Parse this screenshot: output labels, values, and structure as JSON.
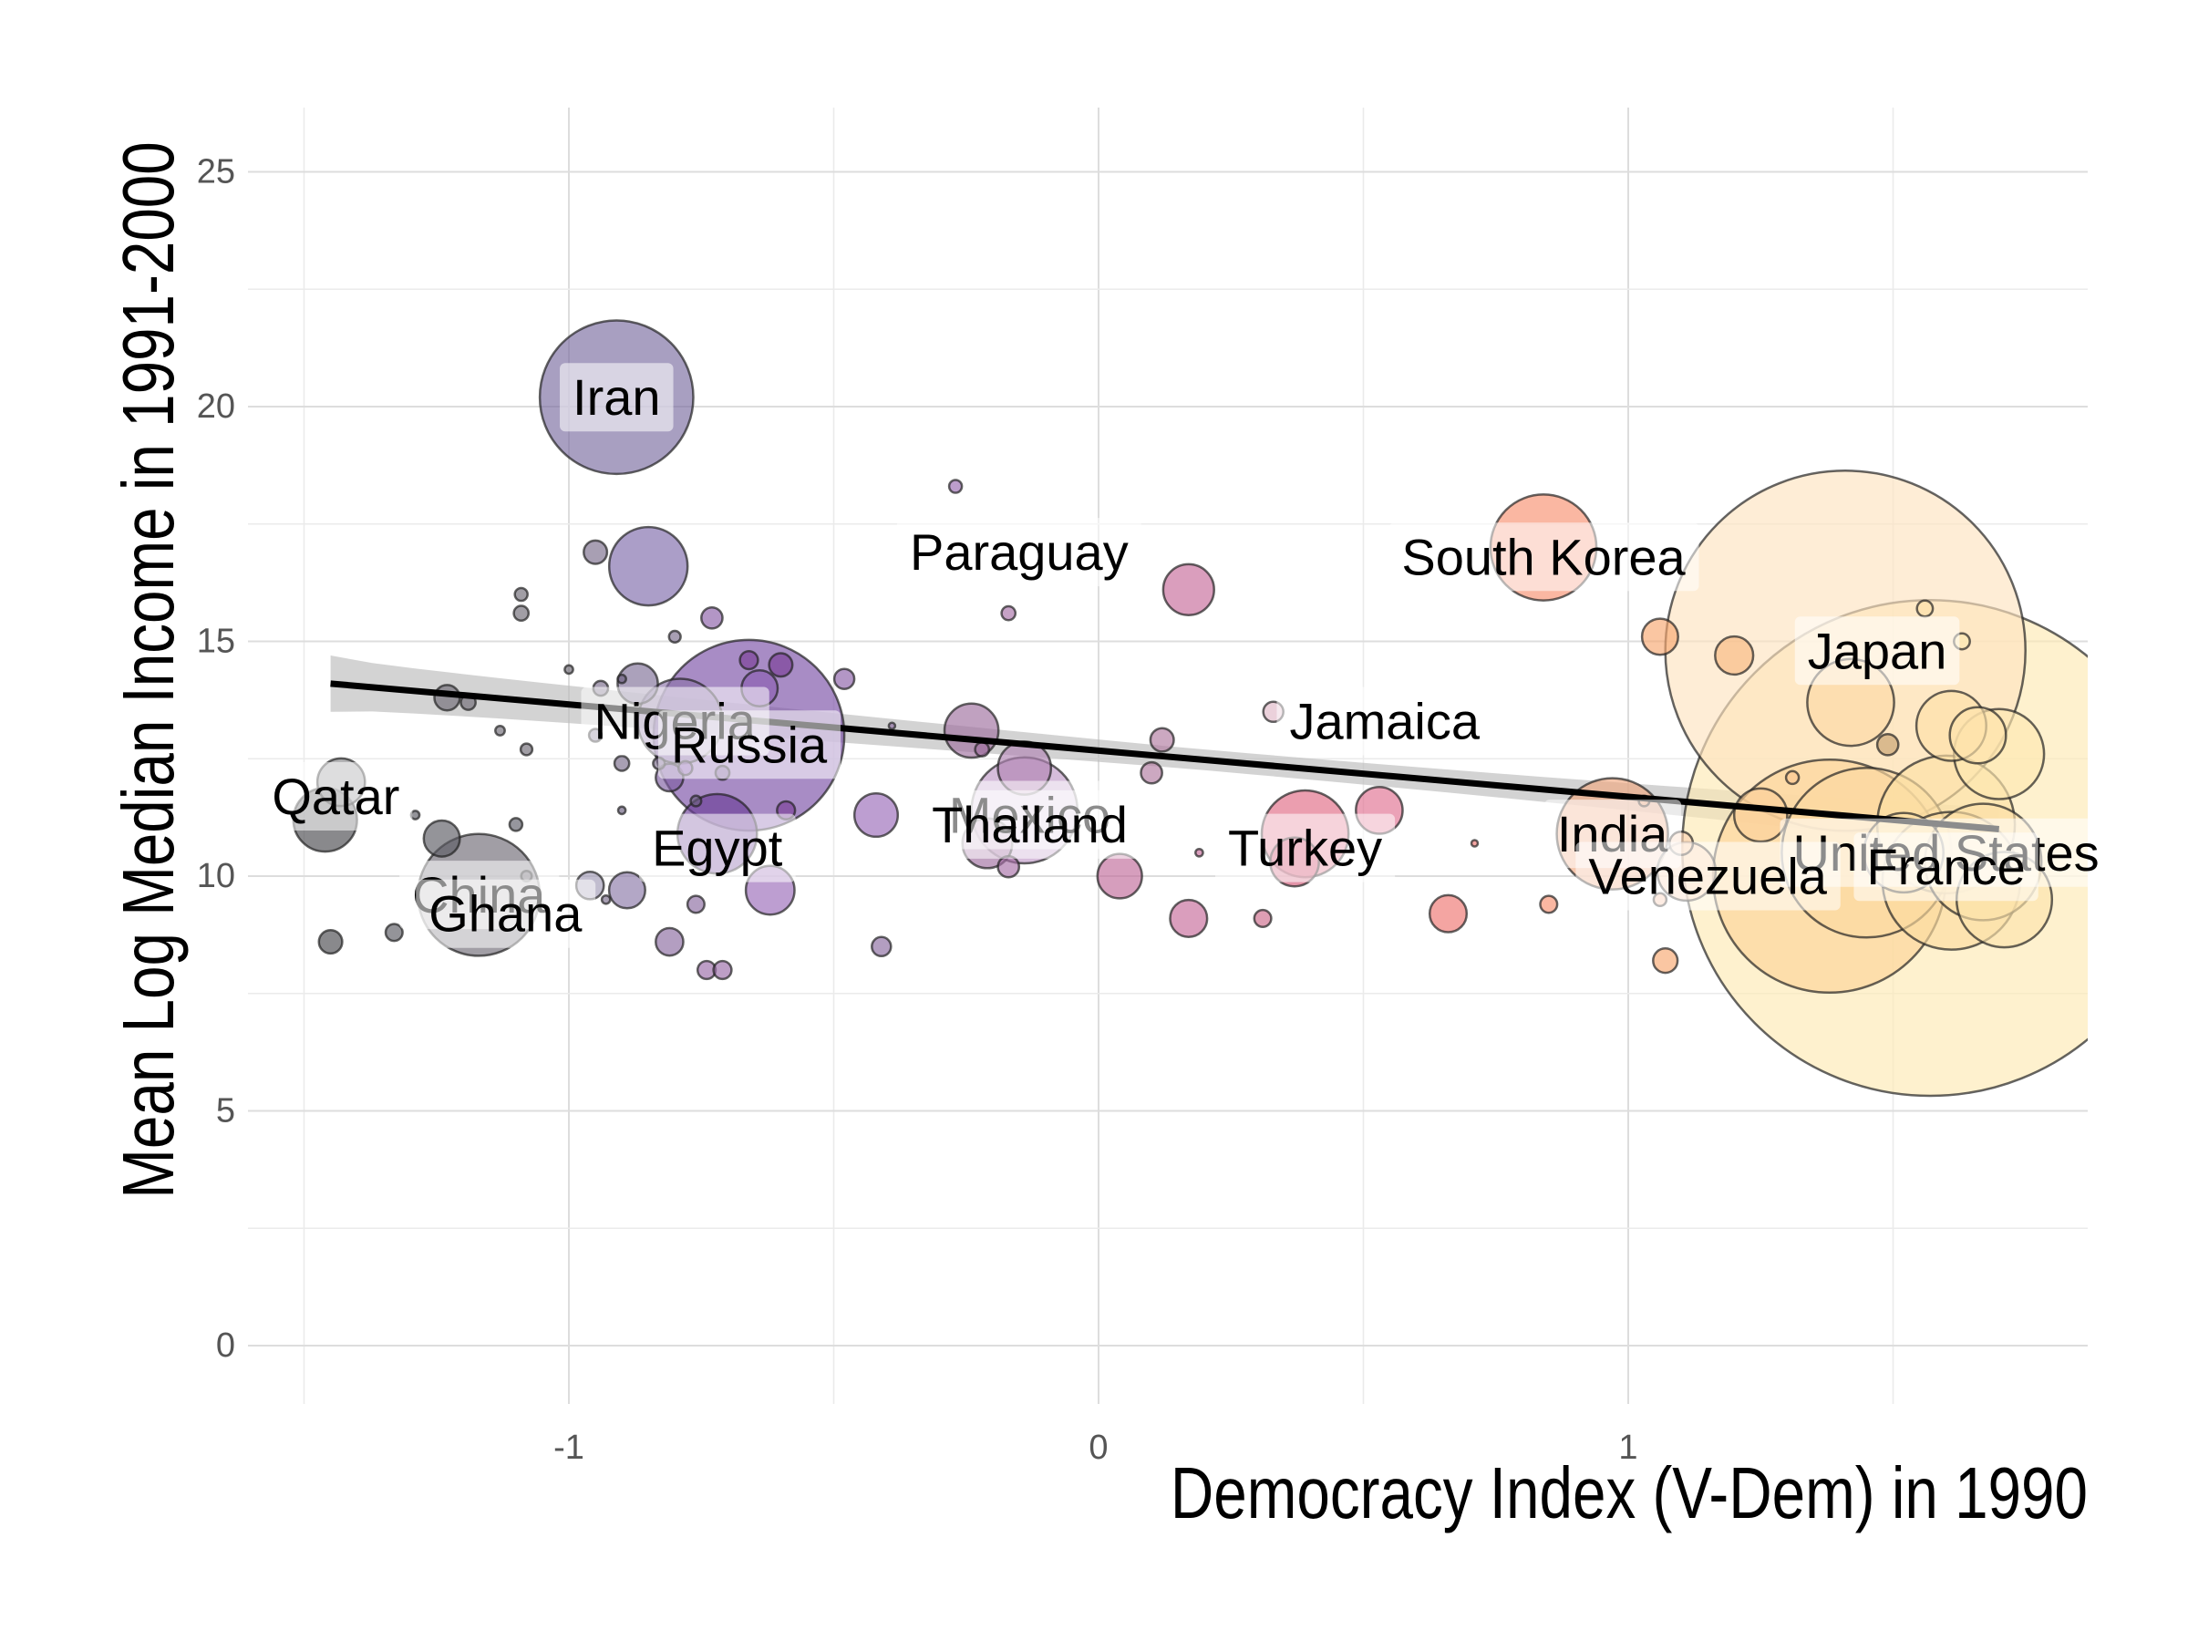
{
  "chart_data": {
    "type": "scatter",
    "title": "",
    "xlabel": "Democracy Index (V-Dem) in 1990",
    "ylabel": "Mean Log Median Income in 1991-2000",
    "xlim": [
      -1.55,
      1.87
    ],
    "ylim": [
      -1.1,
      26.3
    ],
    "x_ticks": [
      -1,
      0,
      1
    ],
    "x_tick_labels": [
      "-1",
      "0",
      "1"
    ],
    "y_ticks": [
      0,
      5,
      10,
      15,
      20,
      25
    ],
    "y_tick_labels": [
      "0",
      "5",
      "10",
      "15",
      "20",
      "25"
    ],
    "grid": true,
    "legend": "none",
    "size_encodes": "population (bubble area)",
    "color_scale": "magma-style gradient by democracy index (dark grey to purple to pink to pale yellow)",
    "trend_line": {
      "type": "linear fit with confidence band",
      "x_start": -1.45,
      "y_start": 14.1,
      "x_end": 1.7,
      "y_end": 11.0,
      "band_halfwidth_start": 0.6,
      "band_halfwidth_min": 0.22,
      "band_halfwidth_end": 0.45,
      "color": "#000000",
      "band_color": "#bbbbbb"
    },
    "series": [
      {
        "points": [
          {
            "x": -1.46,
            "y": 11.2,
            "r": 0.06,
            "color": "#4a4a4e"
          },
          {
            "x": -1.43,
            "y": 12.0,
            "r": 0.045,
            "color": "#8a8a8e"
          },
          {
            "x": -1.45,
            "y": 8.6,
            "r": 0.022,
            "color": "#4a4a4e"
          },
          {
            "x": -1.33,
            "y": 8.8,
            "r": 0.016,
            "color": "#5a5a62"
          },
          {
            "x": -1.29,
            "y": 11.3,
            "r": 0.008,
            "color": "#5a5a62"
          },
          {
            "x": -1.24,
            "y": 10.8,
            "r": 0.034,
            "color": "#5a5a62"
          },
          {
            "x": -1.17,
            "y": 9.6,
            "r": 0.115,
            "color": "#6e6a74"
          },
          {
            "x": -1.23,
            "y": 13.8,
            "r": 0.024,
            "color": "#6e6a74"
          },
          {
            "x": -1.19,
            "y": 13.7,
            "r": 0.014,
            "color": "#6e6a74"
          },
          {
            "x": -1.13,
            "y": 13.1,
            "r": 0.009,
            "color": "#6e6a74"
          },
          {
            "x": -1.09,
            "y": 16.0,
            "r": 0.012,
            "color": "#6e6a74"
          },
          {
            "x": -1.09,
            "y": 15.6,
            "r": 0.014,
            "color": "#6e6a74"
          },
          {
            "x": -1.08,
            "y": 12.7,
            "r": 0.011,
            "color": "#6e6a74"
          },
          {
            "x": -1.1,
            "y": 11.1,
            "r": 0.012,
            "color": "#5e5e68"
          },
          {
            "x": -1.08,
            "y": 10.0,
            "r": 0.01,
            "color": "#6e6a74"
          },
          {
            "x": -1.0,
            "y": 14.4,
            "r": 0.008,
            "color": "#6e6a74"
          },
          {
            "x": -0.95,
            "y": 16.9,
            "r": 0.022,
            "color": "#7a6c8a"
          },
          {
            "x": -0.96,
            "y": 9.8,
            "r": 0.026,
            "color": "#a09ab6"
          },
          {
            "x": -0.93,
            "y": 9.5,
            "r": 0.008,
            "color": "#7a6c8a"
          },
          {
            "x": -0.94,
            "y": 14.0,
            "r": 0.014,
            "color": "#7a6c8a"
          },
          {
            "x": -0.95,
            "y": 13.0,
            "r": 0.012,
            "color": "#7a6c8a"
          },
          {
            "x": -0.9,
            "y": 14.2,
            "r": 0.008,
            "color": "#6a5e7e"
          },
          {
            "x": -0.9,
            "y": 12.4,
            "r": 0.014,
            "color": "#7a6c8a"
          },
          {
            "x": -0.9,
            "y": 11.4,
            "r": 0.007,
            "color": "#6a5e7e"
          },
          {
            "x": -0.91,
            "y": 20.2,
            "r": 0.145,
            "color": "#7a6ca0"
          },
          {
            "x": -0.85,
            "y": 16.6,
            "r": 0.074,
            "color": "#7e6aaa"
          },
          {
            "x": -0.89,
            "y": 9.7,
            "r": 0.034,
            "color": "#8a78a8"
          },
          {
            "x": -0.87,
            "y": 14.1,
            "r": 0.038,
            "color": "#7e6e96"
          },
          {
            "x": -0.8,
            "y": 15.1,
            "r": 0.011,
            "color": "#7a6c8a"
          },
          {
            "x": -0.83,
            "y": 12.4,
            "r": 0.011,
            "color": "#7a6c8a"
          },
          {
            "x": -0.81,
            "y": 12.1,
            "r": 0.026,
            "color": "#7e5ea2"
          },
          {
            "x": -0.78,
            "y": 12.3,
            "r": 0.013,
            "color": "#8a60b0"
          },
          {
            "x": -0.73,
            "y": 15.5,
            "r": 0.02,
            "color": "#8a5ea8"
          },
          {
            "x": -0.76,
            "y": 11.6,
            "r": 0.01,
            "color": "#6a5e7e"
          },
          {
            "x": -0.81,
            "y": 8.6,
            "r": 0.026,
            "color": "#8a6aa0"
          },
          {
            "x": -0.76,
            "y": 9.4,
            "r": 0.016,
            "color": "#8a6aa0"
          },
          {
            "x": -0.74,
            "y": 8.0,
            "r": 0.017,
            "color": "#9a6aa8"
          },
          {
            "x": -0.71,
            "y": 8.0,
            "r": 0.017,
            "color": "#9a6aa8"
          },
          {
            "x": -0.79,
            "y": 13.3,
            "r": 0.08,
            "color": "#8a72a8"
          },
          {
            "x": -0.72,
            "y": 10.9,
            "r": 0.075,
            "color": "#6a3e96"
          },
          {
            "x": -0.71,
            "y": 12.2,
            "r": 0.013,
            "color": "#7a5e96"
          },
          {
            "x": -0.66,
            "y": 13.0,
            "r": 0.18,
            "color": "#7a4ea6"
          },
          {
            "x": -0.66,
            "y": 14.6,
            "r": 0.017,
            "color": "#7a3e96"
          },
          {
            "x": -0.64,
            "y": 14.0,
            "r": 0.034,
            "color": "#8a5eb0"
          },
          {
            "x": -0.6,
            "y": 14.5,
            "r": 0.022,
            "color": "#7a3e96"
          },
          {
            "x": -0.59,
            "y": 11.4,
            "r": 0.017,
            "color": "#7a3e96"
          },
          {
            "x": -0.62,
            "y": 9.7,
            "r": 0.046,
            "color": "#9a6ab8"
          },
          {
            "x": -0.48,
            "y": 14.2,
            "r": 0.019,
            "color": "#8a5ea8"
          },
          {
            "x": -0.42,
            "y": 11.3,
            "r": 0.041,
            "color": "#9a6ab8"
          },
          {
            "x": -0.41,
            "y": 8.5,
            "r": 0.018,
            "color": "#8a6aa0"
          },
          {
            "x": -0.39,
            "y": 13.2,
            "r": 0.006,
            "color": "#8a6aa0"
          },
          {
            "x": -0.27,
            "y": 18.3,
            "r": 0.012,
            "color": "#9a6ab0"
          },
          {
            "x": -0.24,
            "y": 13.1,
            "r": 0.051,
            "color": "#9e6e9e"
          },
          {
            "x": -0.22,
            "y": 12.7,
            "r": 0.013,
            "color": "#9e6e9e"
          },
          {
            "x": -0.21,
            "y": 10.7,
            "r": 0.047,
            "color": "#a06ea0"
          },
          {
            "x": -0.14,
            "y": 11.4,
            "r": 0.1,
            "color": "#c09ac8"
          },
          {
            "x": -0.14,
            "y": 12.3,
            "r": 0.05,
            "color": "#b084b4"
          },
          {
            "x": -0.17,
            "y": 15.6,
            "r": 0.013,
            "color": "#a870a8"
          },
          {
            "x": -0.17,
            "y": 10.2,
            "r": 0.02,
            "color": "#a870a8"
          },
          {
            "x": 0.04,
            "y": 10.0,
            "r": 0.042,
            "color": "#c06a9a"
          },
          {
            "x": 0.1,
            "y": 12.2,
            "r": 0.02,
            "color": "#b07aa0"
          },
          {
            "x": 0.12,
            "y": 12.9,
            "r": 0.022,
            "color": "#b07aa0"
          },
          {
            "x": 0.17,
            "y": 16.1,
            "r": 0.048,
            "color": "#c66a9a"
          },
          {
            "x": 0.17,
            "y": 9.1,
            "r": 0.035,
            "color": "#c66a9a"
          },
          {
            "x": 0.19,
            "y": 10.5,
            "r": 0.007,
            "color": "#c66a9a"
          },
          {
            "x": 0.31,
            "y": 9.1,
            "r": 0.016,
            "color": "#cc6a8a"
          },
          {
            "x": 0.33,
            "y": 13.5,
            "r": 0.019,
            "color": "#e0b8c8"
          },
          {
            "x": 0.37,
            "y": 10.3,
            "r": 0.046,
            "color": "#d45a7a"
          },
          {
            "x": 0.39,
            "y": 10.9,
            "r": 0.082,
            "color": "#e06a84"
          },
          {
            "x": 0.53,
            "y": 11.4,
            "r": 0.044,
            "color": "#e07090"
          },
          {
            "x": 0.66,
            "y": 9.2,
            "r": 0.035,
            "color": "#ee7470"
          },
          {
            "x": 0.71,
            "y": 10.7,
            "r": 0.006,
            "color": "#ee7470"
          },
          {
            "x": 0.84,
            "y": 17.0,
            "r": 0.1,
            "color": "#f89070"
          },
          {
            "x": 0.85,
            "y": 9.4,
            "r": 0.016,
            "color": "#f89070"
          },
          {
            "x": 0.97,
            "y": 10.9,
            "r": 0.105,
            "color": "#f0a880"
          },
          {
            "x": 1.03,
            "y": 11.6,
            "r": 0.01,
            "color": "#f0a880"
          },
          {
            "x": 1.06,
            "y": 15.1,
            "r": 0.034,
            "color": "#f8a870"
          },
          {
            "x": 1.07,
            "y": 8.2,
            "r": 0.023,
            "color": "#f8a870"
          },
          {
            "x": 1.06,
            "y": 9.5,
            "r": 0.012,
            "color": "#f8c0a0"
          },
          {
            "x": 1.1,
            "y": 10.7,
            "r": 0.022,
            "color": "#fcd4b4"
          },
          {
            "x": 1.11,
            "y": 10.1,
            "r": 0.055,
            "color": "#fcd4b4"
          },
          {
            "x": 1.2,
            "y": 14.7,
            "r": 0.036,
            "color": "#f8b880"
          },
          {
            "x": 1.25,
            "y": 11.3,
            "r": 0.05,
            "color": "#fcd09a"
          },
          {
            "x": 1.31,
            "y": 12.1,
            "r": 0.012,
            "color": "#fcc890"
          },
          {
            "x": 1.41,
            "y": 14.8,
            "r": 0.34,
            "color": "#fde4c0"
          },
          {
            "x": 1.42,
            "y": 13.7,
            "r": 0.082,
            "color": "#fcd8a4"
          },
          {
            "x": 1.49,
            "y": 12.8,
            "r": 0.02,
            "color": "#c6a270"
          },
          {
            "x": 1.56,
            "y": 15.7,
            "r": 0.015,
            "color": "#fce0a8"
          },
          {
            "x": 1.61,
            "y": 13.2,
            "r": 0.066,
            "color": "#fde0a8"
          },
          {
            "x": 1.63,
            "y": 15.0,
            "r": 0.015,
            "color": "#fce8b0"
          },
          {
            "x": 1.66,
            "y": 13.0,
            "r": 0.053,
            "color": "#fde4ac"
          },
          {
            "x": 1.7,
            "y": 12.6,
            "r": 0.085,
            "color": "#fde8b0"
          },
          {
            "x": 1.38,
            "y": 10.0,
            "r": 0.22,
            "color": "#fcd498"
          },
          {
            "x": 1.45,
            "y": 10.5,
            "r": 0.16,
            "color": "#fcd8a0"
          },
          {
            "x": 1.6,
            "y": 11.1,
            "r": 0.13,
            "color": "#fce0a4"
          },
          {
            "x": 1.61,
            "y": 9.9,
            "r": 0.13,
            "color": "#fcdca0"
          },
          {
            "x": 1.67,
            "y": 10.3,
            "r": 0.11,
            "color": "#fde0a8"
          },
          {
            "x": 1.71,
            "y": 9.5,
            "r": 0.09,
            "color": "#fce4ac"
          },
          {
            "x": 1.52,
            "y": 10.5,
            "r": 0.075,
            "color": "#fde0a6"
          },
          {
            "x": 1.57,
            "y": 10.6,
            "r": 0.468,
            "color": "#fdeab4"
          }
        ]
      }
    ],
    "labels": [
      {
        "text": "Iran",
        "x": -0.91,
        "y": 20.2
      },
      {
        "text": "Paraguay",
        "x": -0.15,
        "y": 16.9
      },
      {
        "text": "South Korea",
        "x": 0.84,
        "y": 16.8
      },
      {
        "text": "Japan",
        "x": 1.47,
        "y": 14.8
      },
      {
        "text": "Jamaica",
        "x": 0.54,
        "y": 13.3
      },
      {
        "text": "Nigeria",
        "x": -0.8,
        "y": 13.3
      },
      {
        "text": "Russia",
        "x": -0.66,
        "y": 12.8
      },
      {
        "text": "Qatar",
        "x": -1.44,
        "y": 11.7
      },
      {
        "text": "Mexico",
        "x": -0.13,
        "y": 11.3
      },
      {
        "text": "Thailand",
        "x": -0.13,
        "y": 11.1
      },
      {
        "text": "Turkey",
        "x": 0.39,
        "y": 10.6
      },
      {
        "text": "India",
        "x": 0.97,
        "y": 10.9
      },
      {
        "text": "Egypt",
        "x": -0.72,
        "y": 10.6
      },
      {
        "text": "United States",
        "x": 1.6,
        "y": 10.5
      },
      {
        "text": "France",
        "x": 1.6,
        "y": 10.2
      },
      {
        "text": "Venezuela",
        "x": 1.15,
        "y": 10.0
      },
      {
        "text": "China",
        "x": -1.17,
        "y": 9.6
      },
      {
        "text": "Ghana",
        "x": -1.12,
        "y": 9.2
      }
    ]
  }
}
